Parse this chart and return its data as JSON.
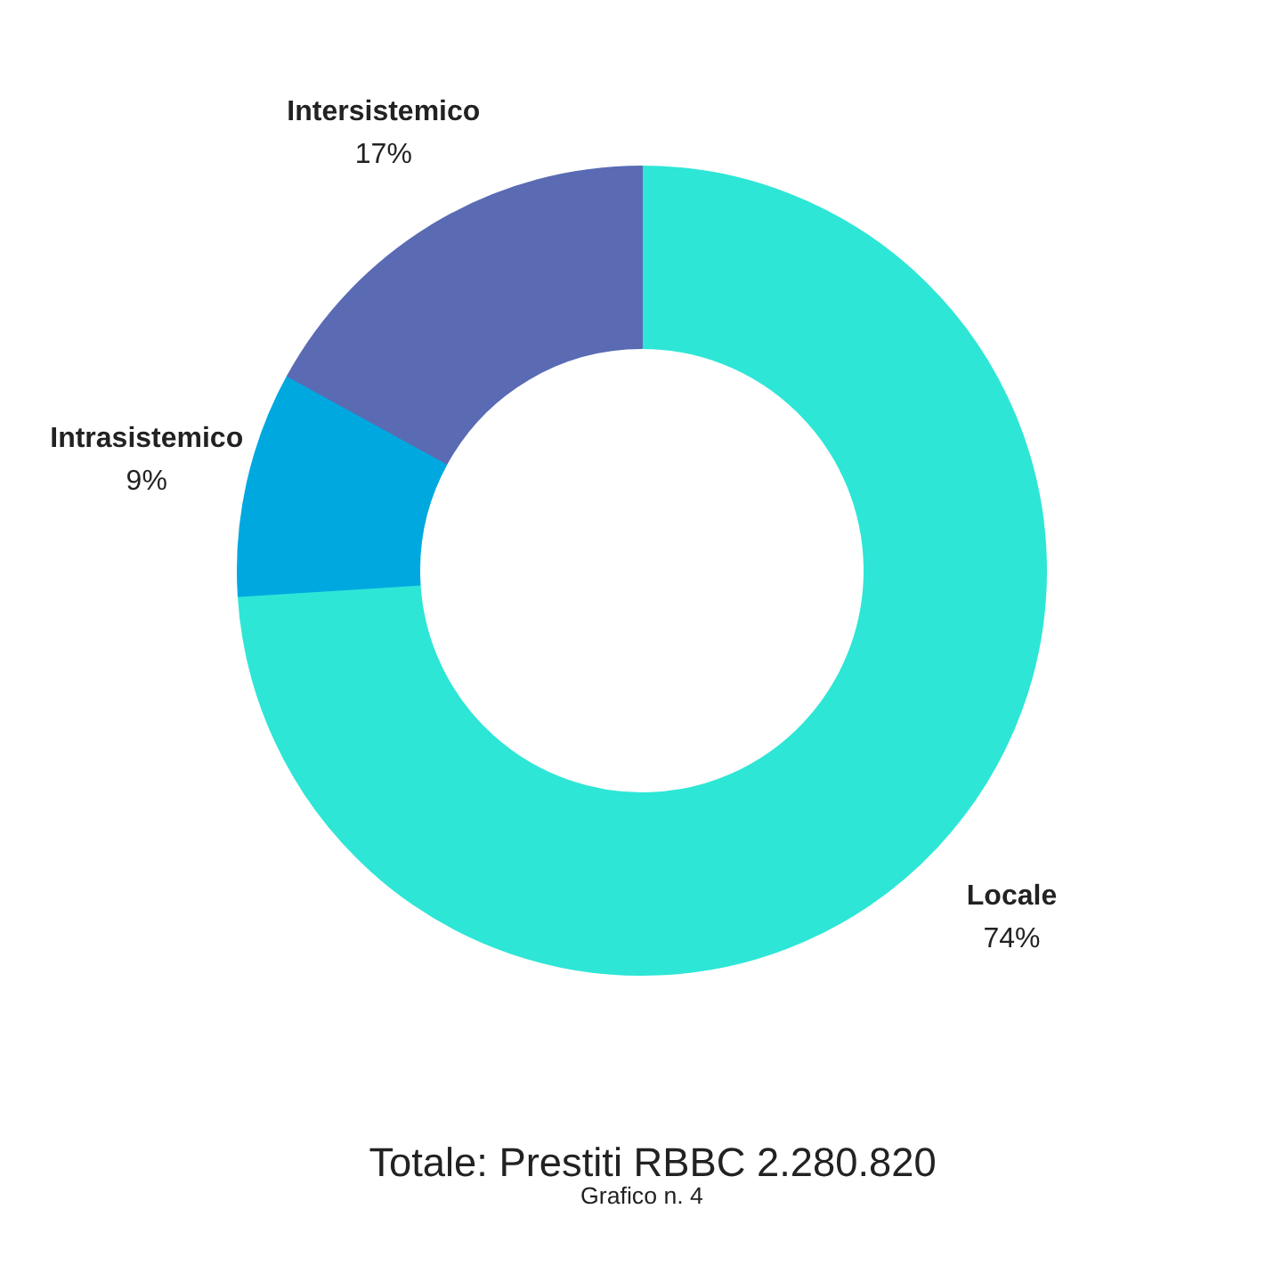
{
  "chart_data": {
    "type": "donut",
    "title": "Totale: Prestiti RBBC 2.280.820",
    "subtitle": "Grafico n. 4",
    "categories": [
      "Locale",
      "Intrasistemico",
      "Intersistemico"
    ],
    "values": [
      74,
      9,
      17
    ],
    "colors": [
      "#2ee6d6",
      "#00a8e0",
      "#5a6bb4"
    ],
    "value_labels": [
      "74%",
      "9%",
      "17%"
    ]
  }
}
